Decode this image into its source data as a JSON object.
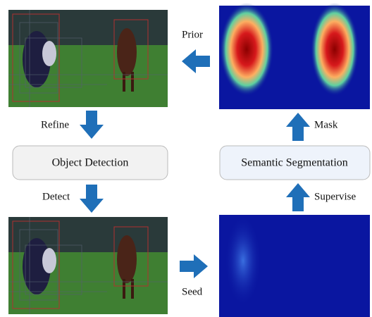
{
  "nodes": [
    {
      "label": "Object Detection"
    },
    {
      "label": "Semantic Segmentation"
    }
  ],
  "edges": [
    {
      "label": "Prior"
    },
    {
      "label": "Refine"
    },
    {
      "label": "Detect"
    },
    {
      "label": "Seed"
    },
    {
      "label": "Supervise"
    },
    {
      "label": "Mask"
    }
  ]
}
